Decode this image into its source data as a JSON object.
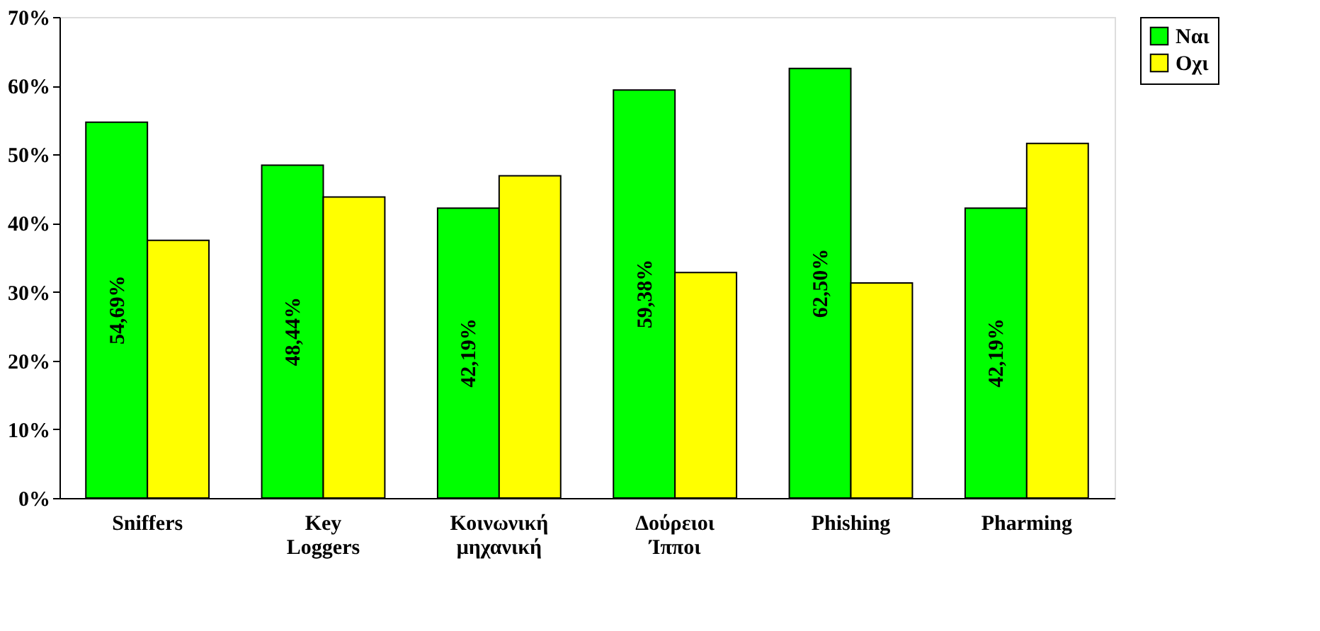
{
  "chart_data": {
    "type": "bar",
    "categories": [
      "Sniffers",
      "Key Loggers",
      "Κοινωνική μηχανική",
      "Δούρειοι Ίπποι",
      "Phishing",
      "Pharming"
    ],
    "series": [
      {
        "name": "Ναι",
        "color": "#00ff00",
        "values": [
          54.69,
          48.44,
          42.19,
          59.38,
          62.5,
          42.19
        ],
        "value_labels": [
          "54,69%",
          "48,44%",
          "42,19%",
          "59,38%",
          "62,50%",
          "42,19%"
        ]
      },
      {
        "name": "Οχι",
        "color": "#ffff00",
        "values": [
          37.5,
          43.8,
          46.9,
          32.8,
          31.3,
          51.6
        ]
      }
    ],
    "ylim": [
      0,
      70
    ],
    "yticks": [
      {
        "value": 0,
        "label": "0%"
      },
      {
        "value": 10,
        "label": "10%"
      },
      {
        "value": 20,
        "label": "20%"
      },
      {
        "value": 30,
        "label": "30%"
      },
      {
        "value": 40,
        "label": "40%"
      },
      {
        "value": 50,
        "label": "50%"
      },
      {
        "value": 60,
        "label": "60%"
      },
      {
        "value": 70,
        "label": "70%"
      }
    ],
    "grid": false,
    "legend": "right"
  }
}
